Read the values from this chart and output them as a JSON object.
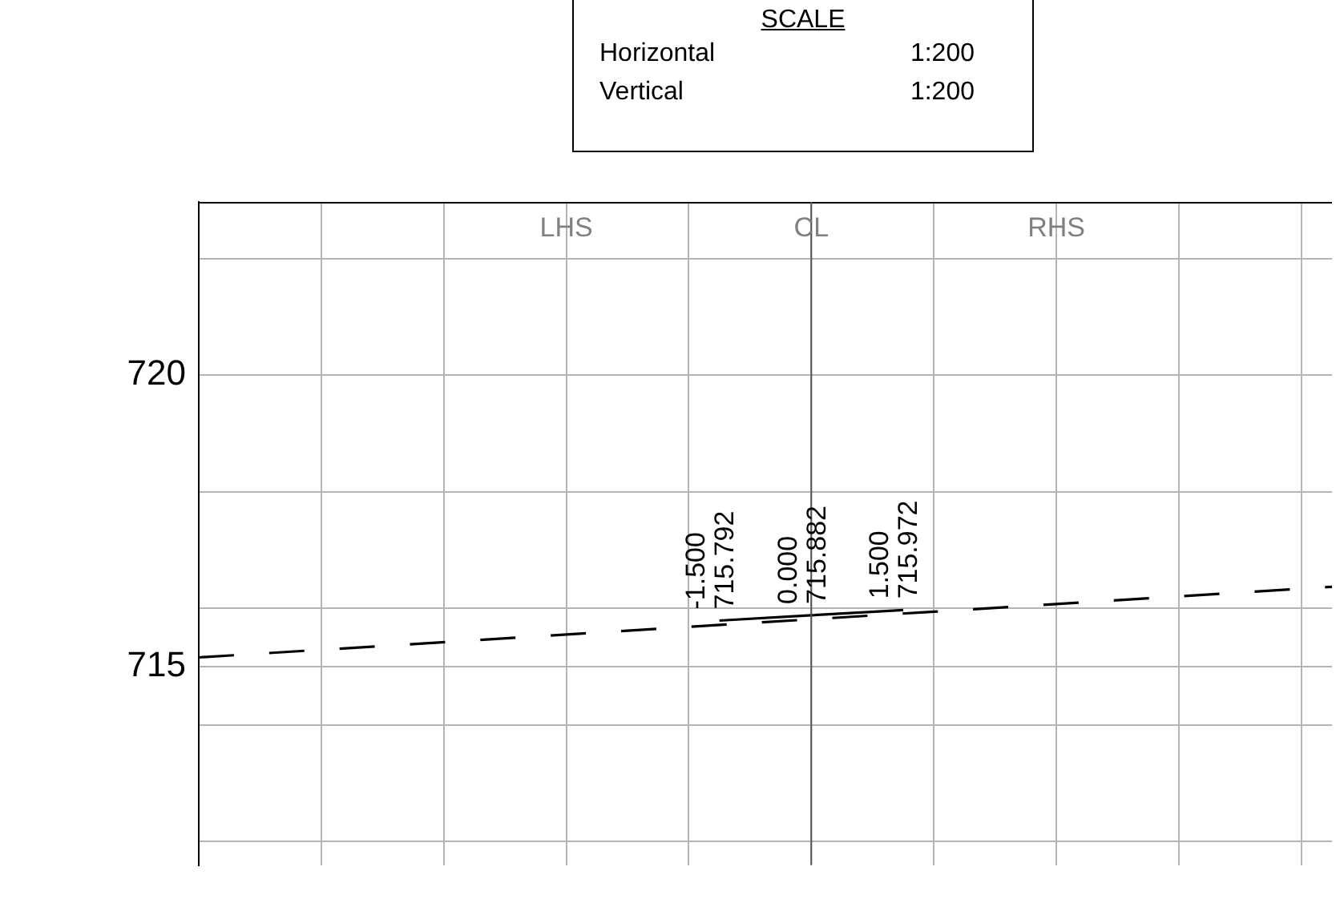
{
  "chart_data": {
    "type": "line",
    "title": "SCALE",
    "annotations": [
      "Horizontal 1:200",
      "Vertical 1:200"
    ],
    "categories": [
      null,
      null,
      null,
      null,
      null,
      null,
      null,
      null,
      null,
      null,
      null,
      null,
      "LHS",
      null,
      null,
      null,
      null,
      null,
      null,
      null,
      "CL",
      null,
      null,
      null,
      null,
      null,
      null,
      null,
      "RHS",
      null,
      null,
      null,
      null,
      null,
      null,
      null,
      null,
      null
    ],
    "series": [
      {
        "color": "#000000",
        "line_style": "dashed",
        "values": [
          715.16,
          null,
          null,
          null,
          null,
          null,
          null,
          null,
          null,
          null,
          null,
          null,
          null,
          null,
          null,
          null,
          null,
          null,
          null,
          null,
          null,
          null,
          null,
          null,
          null,
          null,
          null,
          null,
          null,
          null,
          null,
          null,
          null,
          null,
          null,
          null,
          null,
          716.37
        ]
      },
      {
        "color": "#000000",
        "line_style": "solid",
        "values": [
          null,
          null,
          null,
          null,
          null,
          null,
          null,
          null,
          null,
          null,
          null,
          null,
          null,
          null,
          null,
          null,
          null,
          715.792,
          null,
          null,
          715.882,
          null,
          null,
          715.972,
          null,
          null,
          null,
          null,
          null,
          null,
          null,
          null,
          null,
          null,
          null,
          null,
          null,
          null
        ],
        "value_labels": [
          null,
          null,
          null,
          null,
          null,
          null,
          null,
          null,
          null,
          null,
          null,
          null,
          null,
          null,
          null,
          null,
          null,
          "-1.500\n715.792",
          null,
          null,
          "0.000\n715.882",
          null,
          null,
          "1.500\n715.972",
          null,
          null,
          null,
          null,
          null,
          null,
          null,
          null,
          null,
          null,
          null,
          null,
          null,
          null
        ]
      }
    ],
    "ylim": [
      711.6,
      722.97
    ],
    "yticks": [
      {
        "value": 712,
        "label": null
      },
      {
        "value": 714,
        "label": null
      },
      {
        "value": 715,
        "label": "715"
      },
      {
        "value": 716,
        "label": null
      },
      {
        "value": 718,
        "label": null
      },
      {
        "value": 720,
        "label": "720"
      },
      {
        "value": 722,
        "label": null
      }
    ],
    "ref_lines": [
      {
        "axis": "x",
        "value": "CL",
        "color": "#555555"
      }
    ],
    "grid": true,
    "legend": false,
    "marker": "none"
  }
}
